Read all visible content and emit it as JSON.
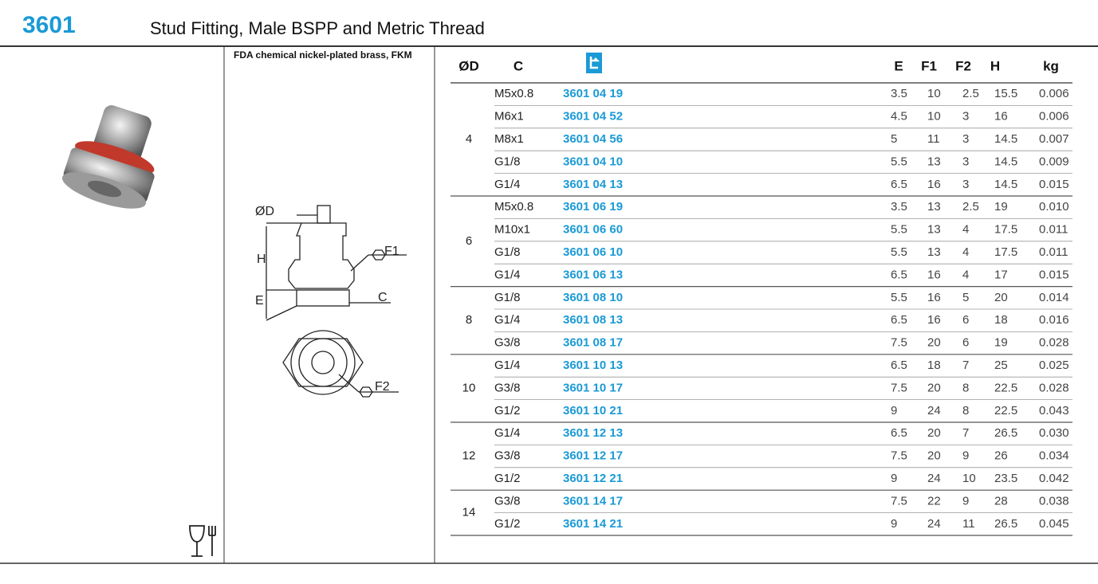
{
  "header": {
    "code": "3601",
    "title": "Stud Fitting, Male BSPP and Metric Thread"
  },
  "material": "FDA chemical nickel-plated brass, FKM",
  "diagram": {
    "labels": {
      "d": "ØD",
      "h": "H",
      "f1": "F1",
      "e": "E",
      "c": "C",
      "f2": "F2"
    }
  },
  "table": {
    "headers": [
      "ØD",
      "C",
      "E",
      "F1",
      "F2",
      "H",
      "kg"
    ],
    "groups": [
      {
        "diameter": "4",
        "rows": [
          [
            "M5x0.8",
            "3601 04 19",
            "3.5",
            "10",
            "2.5",
            "15.5",
            "0.006"
          ],
          [
            "M6x1",
            "3601 04 52",
            "4.5",
            "10",
            "3",
            "16",
            "0.006"
          ],
          [
            "M8x1",
            "3601 04 56",
            "5",
            "11",
            "3",
            "14.5",
            "0.007"
          ],
          [
            "G1/8",
            "3601 04 10",
            "5.5",
            "13",
            "3",
            "14.5",
            "0.009"
          ],
          [
            "G1/4",
            "3601 04 13",
            "6.5",
            "16",
            "3",
            "14.5",
            "0.015"
          ]
        ]
      },
      {
        "diameter": "6",
        "rows": [
          [
            "M5x0.8",
            "3601 06 19",
            "3.5",
            "13",
            "2.5",
            "19",
            "0.010"
          ],
          [
            "M10x1",
            "3601 06 60",
            "5.5",
            "13",
            "4",
            "17.5",
            "0.011"
          ],
          [
            "G1/8",
            "3601 06 10",
            "5.5",
            "13",
            "4",
            "17.5",
            "0.011"
          ],
          [
            "G1/4",
            "3601 06 13",
            "6.5",
            "16",
            "4",
            "17",
            "0.015"
          ]
        ]
      },
      {
        "diameter": "8",
        "rows": [
          [
            "G1/8",
            "3601 08 10",
            "5.5",
            "16",
            "5",
            "20",
            "0.014"
          ],
          [
            "G1/4",
            "3601 08 13",
            "6.5",
            "16",
            "6",
            "18",
            "0.016"
          ],
          [
            "G3/8",
            "3601 08 17",
            "7.5",
            "20",
            "6",
            "19",
            "0.028"
          ]
        ]
      },
      {
        "diameter": "10",
        "rows": [
          [
            "G1/4",
            "3601 10 13",
            "6.5",
            "18",
            "7",
            "25",
            "0.025"
          ],
          [
            "G3/8",
            "3601 10 17",
            "7.5",
            "20",
            "8",
            "22.5",
            "0.028"
          ],
          [
            "G1/2",
            "3601 10 21",
            "9",
            "24",
            "8",
            "22.5",
            "0.043"
          ]
        ]
      },
      {
        "diameter": "12",
        "rows": [
          [
            "G1/4",
            "3601 12 13",
            "6.5",
            "20",
            "7",
            "26.5",
            "0.030"
          ],
          [
            "G3/8",
            "3601 12 17",
            "7.5",
            "20",
            "9",
            "26",
            "0.034"
          ],
          [
            "G1/2",
            "3601 12 21",
            "9",
            "24",
            "10",
            "23.5",
            "0.042"
          ]
        ]
      },
      {
        "diameter": "14",
        "rows": [
          [
            "G3/8",
            "3601 14 17",
            "7.5",
            "22",
            "9",
            "28",
            "0.038"
          ],
          [
            "G1/2",
            "3601 14 21",
            "9",
            "24",
            "11",
            "26.5",
            "0.045"
          ]
        ]
      }
    ]
  }
}
